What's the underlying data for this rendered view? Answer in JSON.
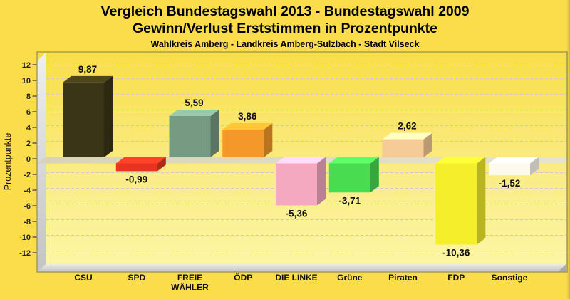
{
  "header": {
    "title_line1": "Vergleich Bundestagswahl 2013 - Bundestagswahl 2009",
    "title_line2": "Gewinn/Verlust Erststimmen in Prozentpunkte",
    "subtitle": "Wahlkreis Amberg - Landkreis Amberg-Sulzbach - Stadt Vilseck"
  },
  "chart_data": {
    "type": "bar",
    "style": "3d-column",
    "title": "Vergleich Bundestagswahl 2013 - Bundestagswahl 2009",
    "subtitle": "Gewinn/Verlust Erststimmen in Prozentpunkte",
    "xlabel": "",
    "ylabel": "Prozentpunkte",
    "ylim": [
      -12,
      12
    ],
    "ytick_step": 2,
    "grid": "horizontal-dashed",
    "legend": "none",
    "decimal_separator": "comma",
    "categories": [
      "CSU",
      "SPD",
      "FREIE WÄHLER",
      "ÖDP",
      "DIE LINKE",
      "Grüne",
      "Piraten",
      "FDP",
      "Sonstige"
    ],
    "category_display": [
      [
        "CSU"
      ],
      [
        "SPD"
      ],
      [
        "FREIE",
        "WÄHLER"
      ],
      [
        "ÖDP"
      ],
      [
        "DIE LINKE"
      ],
      [
        "Grüne"
      ],
      [
        "Piraten"
      ],
      [
        "FDP"
      ],
      [
        "Sonstige"
      ]
    ],
    "values": [
      9.87,
      -0.99,
      5.59,
      3.86,
      -5.36,
      -3.71,
      2.62,
      -10.36,
      -1.52
    ],
    "value_labels": [
      "9,87",
      "-0,99",
      "5,59",
      "3,86",
      "-5,36",
      "-3,71",
      "2,62",
      "-10,36",
      "-1,52"
    ],
    "bar_colors": [
      "#3B3517",
      "#E8341F",
      "#769B82",
      "#F49829",
      "#F5A9C1",
      "#49DC50",
      "#F5CB97",
      "#F4EE2B",
      "#FCFAEE"
    ]
  },
  "colors": {
    "page_background": "#FBDC4B",
    "plot_bg_top": "#F8DE48",
    "plot_bg_mid": "#FAEC85",
    "plot_bg_bottom": "#FCF6A6",
    "plot_border": "#9B9B55",
    "gridline": "#C9C9C9",
    "zero_plane_left": "#D8D3B8",
    "zero_plane_right": "#E6E3D1",
    "wall_top": "#EFEFEF",
    "wall_bottom": "#C3C3C3",
    "floor_top": "#EDEDEB",
    "floor_bottom": "#C2C2C0",
    "floor_corner": "#A9A9A7",
    "text": "#111111"
  }
}
